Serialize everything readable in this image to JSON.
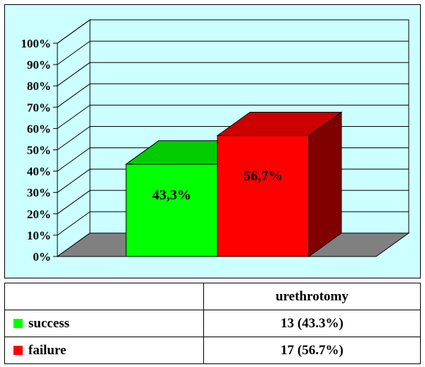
{
  "chart_data": {
    "type": "bar",
    "categories": [
      "success",
      "failure"
    ],
    "values": [
      43.3,
      56.7
    ],
    "value_labels": [
      "43,3%",
      "56,7%"
    ],
    "colors": {
      "success": {
        "front": "#00ff00",
        "top": "#00cc00",
        "side": "#009900"
      },
      "failure": {
        "front": "#ff0000",
        "top": "#cc0000",
        "side": "#800000"
      }
    },
    "y_ticks": [
      "0%",
      "10%",
      "20%",
      "30%",
      "40%",
      "50%",
      "60%",
      "70%",
      "80%",
      "90%",
      "100%"
    ],
    "ylim": [
      0,
      100
    ],
    "grid": true,
    "background": "#ccffff",
    "wall_color": "#ccffff",
    "floor_color": "#808080",
    "three_d": true
  },
  "table": {
    "column_header": "urethrotomy",
    "rows": [
      {
        "label": "success",
        "value": "13 (43.3%)",
        "swatch": "#00ff00"
      },
      {
        "label": "failure",
        "value": "17 (56.7%)",
        "swatch": "#ff0000"
      }
    ]
  }
}
